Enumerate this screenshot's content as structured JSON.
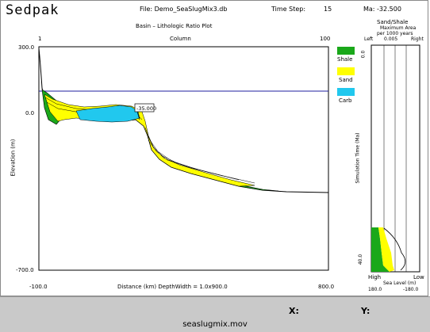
{
  "app": {
    "name": "Sedpak",
    "file": "File: Demo_SeaSlugMix3.db",
    "time_step": "Time Step:",
    "time_step_value": "15",
    "ma": "Ma: -32.500"
  },
  "plot": {
    "title": "Basin – Lithologic Ratio Plot",
    "column_label": "Column",
    "column_start": "1",
    "column_end": "100",
    "y_top": "300.0",
    "y_zero": "0.0",
    "y_bottom": "-700.0",
    "y_axis_label": "Elevation (m)",
    "x_left": "-100.0",
    "x_right": "800.0",
    "x_axis_label": "Distance (km)  DepthWidth = 1.0x900.0",
    "callout": "-35.000"
  },
  "legend": {
    "items": [
      {
        "label": "Shale",
        "color": "#1aa81a"
      },
      {
        "label": "Sand",
        "color": "#ffff00"
      },
      {
        "label": "Carb",
        "color": "#21c8ee"
      }
    ]
  },
  "side_panel": {
    "title_line1": "Sand/Shale",
    "title_line2": "Maximum Area",
    "title_line3": "per 1000 years",
    "left_label": "Left",
    "scale_value": "0.005",
    "right_label": "Right",
    "time_top": "0.0",
    "time_bottom": "40.0",
    "time_axis_label": "Simulation Time (Ma)",
    "high_label": "High",
    "low_label": "Low",
    "sea_level_label": "Sea Level (m)",
    "sea_high_value": "180.0",
    "sea_low_value": "-180.0"
  },
  "status": {
    "x_label": "X:",
    "y_label": "Y:",
    "movie_name": "seaslugmix.mov"
  },
  "colors": {
    "shale": "#1aa81a",
    "sand": "#ffff00",
    "carb": "#21c8ee",
    "sea_level": "#1f1f9f"
  }
}
